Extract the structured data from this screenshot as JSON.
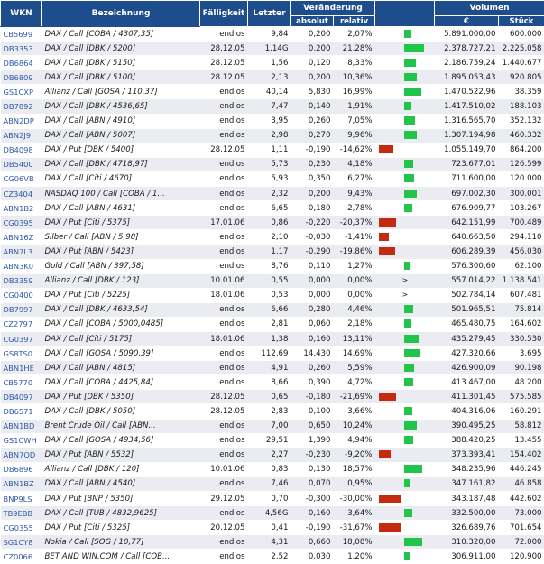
{
  "header": {
    "wkn": "WKN",
    "bezeichnung": "Bezeichnung",
    "faelligkeit": "Fälligkeit",
    "letzter": "Letzter",
    "veraenderung": "Veränderung",
    "absolut": "absolut",
    "relativ": "relativ",
    "volumen": "Volumen",
    "euro": "€",
    "stueck": "Stück"
  },
  "colors": {
    "header_bg": "#1d4d8d",
    "bar_positive": "#22c44a",
    "bar_negative": "#c42a10",
    "wkn_link": "#2f58a8",
    "row_alt": "#eaecf2"
  },
  "rows": [
    {
      "wkn": "CB5699",
      "bez": "DAX / Call [COBA / 4307,35]",
      "faell": "endlos",
      "letzter": "9,84",
      "abs": "0,200",
      "rel": "2,07%",
      "bar": "pos",
      "bar_pct": 2.07,
      "eur": "5.891.000,00",
      "stk": "600.000"
    },
    {
      "wkn": "DB3353",
      "bez": "DAX / Call [DBK / 5200]",
      "faell": "28.12.05",
      "letzter": "1,14G",
      "abs": "0,200",
      "rel": "21,28%",
      "bar": "pos",
      "bar_pct": 21.28,
      "eur": "2.378.727,21",
      "stk": "2.225.058"
    },
    {
      "wkn": "DB6864",
      "bez": "DAX / Call [DBK / 5150]",
      "faell": "28.12.05",
      "letzter": "1,56",
      "abs": "0,120",
      "rel": "8,33%",
      "bar": "pos",
      "bar_pct": 8.33,
      "eur": "2.186.759,24",
      "stk": "1.440.677"
    },
    {
      "wkn": "DB6809",
      "bez": "DAX / Call [DBK / 5100]",
      "faell": "28.12.05",
      "letzter": "2,13",
      "abs": "0,200",
      "rel": "10,36%",
      "bar": "pos",
      "bar_pct": 10.36,
      "eur": "1.895.053,43",
      "stk": "920.805"
    },
    {
      "wkn": "GS1CXP",
      "bez": "Allianz / Call [GOSA / 110,37]",
      "faell": "endlos",
      "letzter": "40,14",
      "abs": "5,830",
      "rel": "16,99%",
      "bar": "pos",
      "bar_pct": 16.99,
      "eur": "1.470.522,96",
      "stk": "38.359"
    },
    {
      "wkn": "DB7892",
      "bez": "DAX / Call [DBK / 4536,65]",
      "faell": "endlos",
      "letzter": "7,47",
      "abs": "0,140",
      "rel": "1,91%",
      "bar": "pos",
      "bar_pct": 1.91,
      "eur": "1.417.510,02",
      "stk": "188.103"
    },
    {
      "wkn": "ABN2DP",
      "bez": "DAX / Call [ABN / 4910]",
      "faell": "endlos",
      "letzter": "3,95",
      "abs": "0,260",
      "rel": "7,05%",
      "bar": "pos",
      "bar_pct": 7.05,
      "eur": "1.316.565,70",
      "stk": "352.132"
    },
    {
      "wkn": "ABN2J9",
      "bez": "DAX / Call [ABN / 5007]",
      "faell": "endlos",
      "letzter": "2,98",
      "abs": "0,270",
      "rel": "9,96%",
      "bar": "pos",
      "bar_pct": 9.96,
      "eur": "1.307.194,98",
      "stk": "460.332"
    },
    {
      "wkn": "DB4098",
      "bez": "DAX / Put [DBK / 5400]",
      "faell": "28.12.05",
      "letzter": "1,11",
      "abs": "-0,190",
      "rel": "-14,62%",
      "bar": "neg",
      "bar_pct": 14.62,
      "eur": "1.055.149,70",
      "stk": "864.200"
    },
    {
      "wkn": "DB5400",
      "bez": "DAX / Call [DBK / 4718,97]",
      "faell": "endlos",
      "letzter": "5,73",
      "abs": "0,230",
      "rel": "4,18%",
      "bar": "pos",
      "bar_pct": 4.18,
      "eur": "723.677,01",
      "stk": "126.599"
    },
    {
      "wkn": "CG06VB",
      "bez": "DAX / Call [Citi / 4670]",
      "faell": "endlos",
      "letzter": "5,93",
      "abs": "0,350",
      "rel": "6,27%",
      "bar": "pos",
      "bar_pct": 6.27,
      "eur": "711.600,00",
      "stk": "120.000"
    },
    {
      "wkn": "CZ3404",
      "bez": "NASDAQ 100 / Call [COBA / 1...",
      "faell": "endlos",
      "letzter": "2,32",
      "abs": "0,200",
      "rel": "9,43%",
      "bar": "pos",
      "bar_pct": 9.43,
      "eur": "697.002,30",
      "stk": "300.001"
    },
    {
      "wkn": "ABN1B2",
      "bez": "DAX / Call [ABN / 4631]",
      "faell": "endlos",
      "letzter": "6,65",
      "abs": "0,180",
      "rel": "2,78%",
      "bar": "pos",
      "bar_pct": 2.78,
      "eur": "676.909,77",
      "stk": "103.267"
    },
    {
      "wkn": "CG0395",
      "bez": "DAX / Put [Citi / 5375]",
      "faell": "17.01.06",
      "letzter": "0,86",
      "abs": "-0,220",
      "rel": "-20,37%",
      "bar": "neg",
      "bar_pct": 20.37,
      "eur": "642.151,99",
      "stk": "700.489"
    },
    {
      "wkn": "ABN16Z",
      "bez": "Silber / Call [ABN / 5,98]",
      "faell": "endlos",
      "letzter": "2,10",
      "abs": "-0,030",
      "rel": "-1,41%",
      "bar": "neg",
      "bar_pct": 1.41,
      "eur": "640.663,50",
      "stk": "294.110"
    },
    {
      "wkn": "ABN7L3",
      "bez": "DAX / Put [ABN / 5423]",
      "faell": "endlos",
      "letzter": "1,17",
      "abs": "-0,290",
      "rel": "-19,86%",
      "bar": "neg",
      "bar_pct": 19.86,
      "eur": "606.289,39",
      "stk": "456.030"
    },
    {
      "wkn": "ABN3K0",
      "bez": "Gold / Call [ABN / 397,58]",
      "faell": "endlos",
      "letzter": "8,76",
      "abs": "0,110",
      "rel": "1,27%",
      "bar": "pos",
      "bar_pct": 1.27,
      "eur": "576.300,60",
      "stk": "62.100"
    },
    {
      "wkn": "DB3359",
      "bez": "Allianz / Call [DBK / 123]",
      "faell": "10.01.06",
      "letzter": "0,55",
      "abs": "0,000",
      "rel": "0,00%",
      "bar": "gt",
      "bar_pct": 0,
      "eur": "557.014,22",
      "stk": "1.138.541"
    },
    {
      "wkn": "CG0400",
      "bez": "DAX / Put [Citi / 5225]",
      "faell": "18.01.06",
      "letzter": "0,53",
      "abs": "0,000",
      "rel": "0,00%",
      "bar": "gt",
      "bar_pct": 0,
      "eur": "502.784,14",
      "stk": "607.481"
    },
    {
      "wkn": "DB7997",
      "bez": "DAX / Call [DBK / 4633,54]",
      "faell": "endlos",
      "letzter": "6,66",
      "abs": "0,280",
      "rel": "4,46%",
      "bar": "pos",
      "bar_pct": 4.46,
      "eur": "501.965,51",
      "stk": "75.814"
    },
    {
      "wkn": "CZ2797",
      "bez": "DAX / Call [COBA / 5000,0485]",
      "faell": "endlos",
      "letzter": "2,81",
      "abs": "0,060",
      "rel": "2,18%",
      "bar": "pos",
      "bar_pct": 2.18,
      "eur": "465.480,75",
      "stk": "164.602"
    },
    {
      "wkn": "CG0397",
      "bez": "DAX / Call [Citi / 5175]",
      "faell": "18.01.06",
      "letzter": "1,38",
      "abs": "0,160",
      "rel": "13,11%",
      "bar": "pos",
      "bar_pct": 13.11,
      "eur": "435.279,45",
      "stk": "330.530"
    },
    {
      "wkn": "GS8TS0",
      "bez": "DAX / Call [GOSA / 5090,39]",
      "faell": "endlos",
      "letzter": "112,69",
      "abs": "14,430",
      "rel": "14,69%",
      "bar": "pos",
      "bar_pct": 14.69,
      "eur": "427.320,66",
      "stk": "3.695"
    },
    {
      "wkn": "ABN1HE",
      "bez": "DAX / Call [ABN / 4815]",
      "faell": "endlos",
      "letzter": "4,91",
      "abs": "0,260",
      "rel": "5,59%",
      "bar": "pos",
      "bar_pct": 5.59,
      "eur": "426.900,09",
      "stk": "90.198"
    },
    {
      "wkn": "CB5770",
      "bez": "DAX / Call [COBA / 4425,84]",
      "faell": "endlos",
      "letzter": "8,66",
      "abs": "0,390",
      "rel": "4,72%",
      "bar": "pos",
      "bar_pct": 4.72,
      "eur": "413.467,00",
      "stk": "48.200"
    },
    {
      "wkn": "DB4097",
      "bez": "DAX / Put [DBK / 5350]",
      "faell": "28.12.05",
      "letzter": "0,65",
      "abs": "-0,180",
      "rel": "-21,69%",
      "bar": "neg",
      "bar_pct": 21.69,
      "eur": "411.301,45",
      "stk": "575.585"
    },
    {
      "wkn": "DB6571",
      "bez": "DAX / Call [DBK / 5050]",
      "faell": "28.12.05",
      "letzter": "2,83",
      "abs": "0,100",
      "rel": "3,66%",
      "bar": "pos",
      "bar_pct": 3.66,
      "eur": "404.316,06",
      "stk": "160.291"
    },
    {
      "wkn": "ABN1BD",
      "bez": "Brent Crude Oil / Call [ABN...",
      "faell": "endlos",
      "letzter": "7,00",
      "abs": "0,650",
      "rel": "10,24%",
      "bar": "pos",
      "bar_pct": 10.24,
      "eur": "390.495,25",
      "stk": "58.812"
    },
    {
      "wkn": "GS1CWH",
      "bez": "DAX / Call [GOSA / 4934,56]",
      "faell": "endlos",
      "letzter": "29,51",
      "abs": "1,390",
      "rel": "4,94%",
      "bar": "pos",
      "bar_pct": 4.94,
      "eur": "388.420,25",
      "stk": "13.455"
    },
    {
      "wkn": "ABN7QD",
      "bez": "DAX / Put [ABN / 5532]",
      "faell": "endlos",
      "letzter": "2,27",
      "abs": "-0,230",
      "rel": "-9,20%",
      "bar": "neg",
      "bar_pct": 9.2,
      "eur": "373.393,41",
      "stk": "154.402"
    },
    {
      "wkn": "DB6896",
      "bez": "Allianz / Call [DBK / 120]",
      "faell": "10.01.06",
      "letzter": "0,83",
      "abs": "0,130",
      "rel": "18,57%",
      "bar": "pos",
      "bar_pct": 18.57,
      "eur": "348.235,96",
      "stk": "446.245"
    },
    {
      "wkn": "ABN1BZ",
      "bez": "DAX / Call [ABN / 4540]",
      "faell": "endlos",
      "letzter": "7,46",
      "abs": "0,070",
      "rel": "0,95%",
      "bar": "pos",
      "bar_pct": 0.95,
      "eur": "347.161,82",
      "stk": "46.858"
    },
    {
      "wkn": "BNP9LS",
      "bez": "DAX / Put [BNP / 5350]",
      "faell": "29.12.05",
      "letzter": "0,70",
      "abs": "-0,300",
      "rel": "-30,00%",
      "bar": "neg",
      "bar_pct": 30.0,
      "eur": "343.187,48",
      "stk": "442.602"
    },
    {
      "wkn": "TB9EBB",
      "bez": "DAX / Call [TUB / 4832,9625]",
      "faell": "endlos",
      "letzter": "4,56G",
      "abs": "0,160",
      "rel": "3,64%",
      "bar": "pos",
      "bar_pct": 3.64,
      "eur": "332.500,00",
      "stk": "73.000"
    },
    {
      "wkn": "CG0355",
      "bez": "DAX / Put [Citi / 5325]",
      "faell": "20.12.05",
      "letzter": "0,41",
      "abs": "-0,190",
      "rel": "-31,67%",
      "bar": "neg",
      "bar_pct": 31.67,
      "eur": "326.689,76",
      "stk": "701.654"
    },
    {
      "wkn": "SG1CY8",
      "bez": "Nokia / Call [SOG / 10,77]",
      "faell": "endlos",
      "letzter": "4,31",
      "abs": "0,660",
      "rel": "18,08%",
      "bar": "pos",
      "bar_pct": 18.08,
      "eur": "310.320,00",
      "stk": "72.000"
    },
    {
      "wkn": "CZ0066",
      "bez": "BET AND WIN.COM / Call [COB...",
      "faell": "endlos",
      "letzter": "2,52",
      "abs": "0,030",
      "rel": "1,20%",
      "bar": "pos",
      "bar_pct": 1.2,
      "eur": "306.911,00",
      "stk": "120.900"
    }
  ]
}
